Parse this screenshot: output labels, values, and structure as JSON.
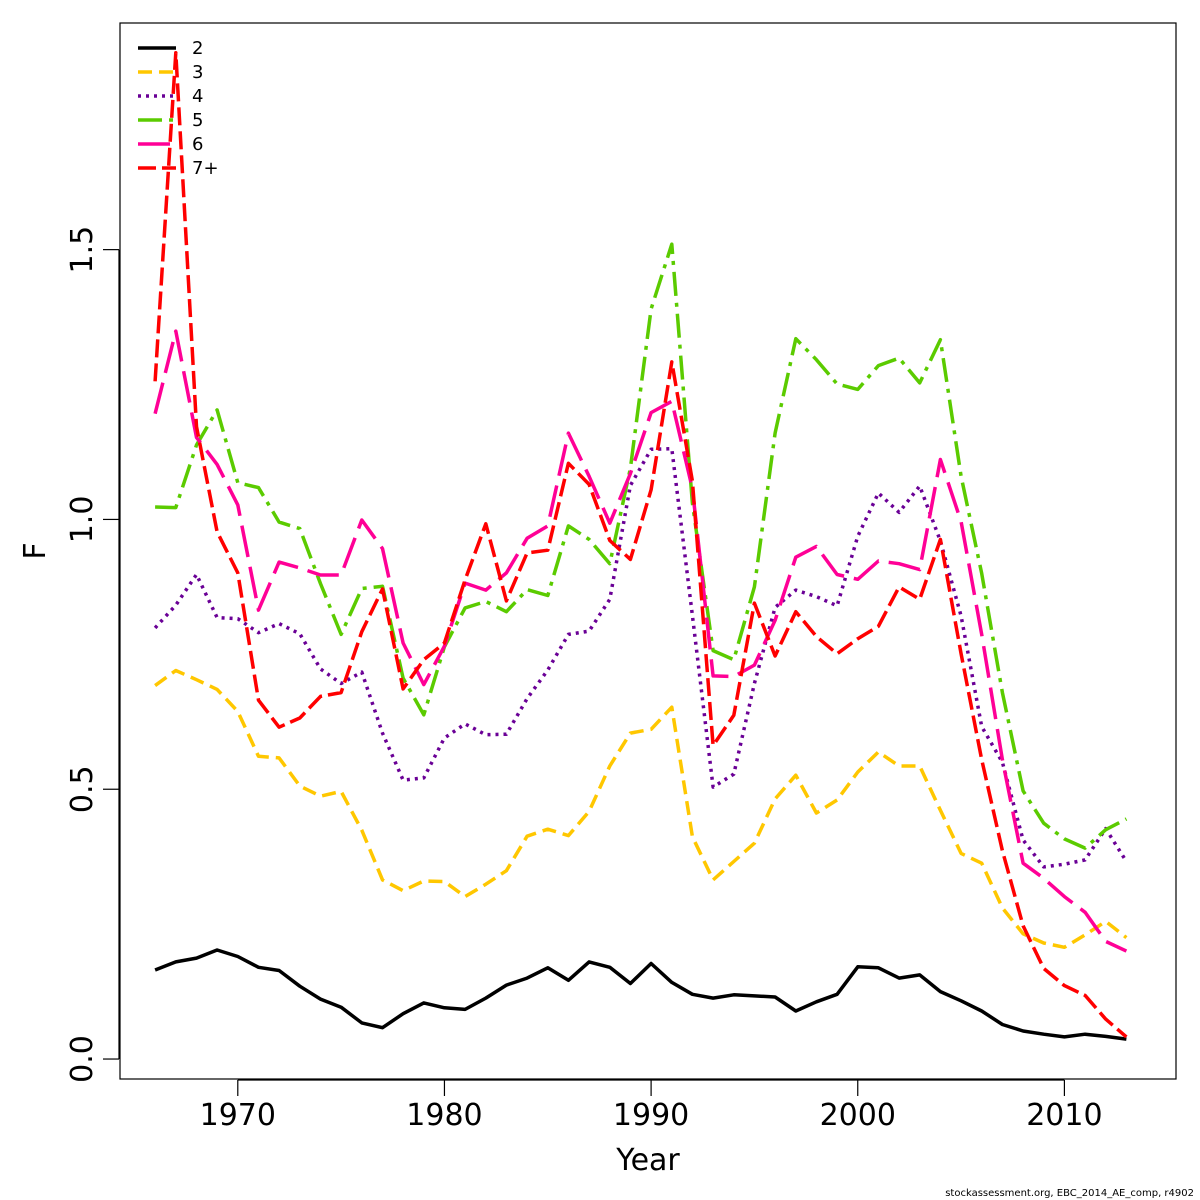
{
  "chart_data": {
    "type": "line",
    "title": "",
    "xlabel": "Year",
    "ylabel": "F",
    "xlim": [
      1964.3,
      2015.4
    ],
    "ylim": [
      -0.037,
      1.92
    ],
    "x_ticks": [
      1970,
      1980,
      1990,
      2000,
      2010
    ],
    "x_tick_labels": [
      "1970",
      "1980",
      "1990",
      "2000",
      "2010"
    ],
    "y_ticks": [
      0.0,
      0.5,
      1.0,
      1.5
    ],
    "y_tick_labels": [
      "0.0",
      "0.5",
      "1.0",
      "1.5"
    ],
    "grid": false,
    "legend_position": "top-left",
    "x": [
      1966,
      1967,
      1968,
      1969,
      1970,
      1971,
      1972,
      1973,
      1974,
      1975,
      1976,
      1977,
      1978,
      1979,
      1980,
      1981,
      1982,
      1983,
      1984,
      1985,
      1986,
      1987,
      1988,
      1989,
      1990,
      1991,
      1992,
      1993,
      1994,
      1995,
      1996,
      1997,
      1998,
      1999,
      2000,
      2001,
      2002,
      2003,
      2004,
      2005,
      2006,
      2007,
      2008,
      2009,
      2010,
      2011,
      2012,
      2013
    ],
    "series": [
      {
        "name": "2",
        "color": "#000000",
        "dash": "",
        "width": 3.5,
        "values": [
          0.165,
          0.18,
          0.187,
          0.202,
          0.19,
          0.17,
          0.164,
          0.135,
          0.111,
          0.096,
          0.067,
          0.058,
          0.084,
          0.104,
          0.095,
          0.092,
          0.113,
          0.137,
          0.15,
          0.169,
          0.146,
          0.18,
          0.17,
          0.14,
          0.177,
          0.142,
          0.12,
          0.113,
          0.119,
          0.117,
          0.115,
          0.089,
          0.106,
          0.12,
          0.171,
          0.169,
          0.15,
          0.156,
          0.125,
          0.108,
          0.089,
          0.064,
          0.052,
          0.046,
          0.041,
          0.046,
          0.042,
          0.037
        ]
      },
      {
        "name": "3",
        "color": "#ffc700",
        "dash": "14,7",
        "width": 3.5,
        "values": [
          0.692,
          0.72,
          0.703,
          0.685,
          0.644,
          0.561,
          0.558,
          0.506,
          0.487,
          0.496,
          0.424,
          0.332,
          0.312,
          0.33,
          0.329,
          0.301,
          0.324,
          0.349,
          0.413,
          0.426,
          0.414,
          0.459,
          0.543,
          0.604,
          0.611,
          0.652,
          0.412,
          0.332,
          0.366,
          0.4,
          0.482,
          0.526,
          0.456,
          0.48,
          0.532,
          0.569,
          0.543,
          0.543,
          0.461,
          0.381,
          0.363,
          0.28,
          0.232,
          0.215,
          0.207,
          0.23,
          0.255,
          0.225
        ]
      },
      {
        "name": "4",
        "color": "#6a0096",
        "dash": "3,5",
        "width": 3.5,
        "values": [
          0.799,
          0.841,
          0.898,
          0.818,
          0.816,
          0.79,
          0.807,
          0.788,
          0.723,
          0.696,
          0.717,
          0.604,
          0.517,
          0.521,
          0.595,
          0.621,
          0.601,
          0.602,
          0.668,
          0.721,
          0.787,
          0.793,
          0.852,
          1.063,
          1.13,
          1.131,
          0.822,
          0.504,
          0.528,
          0.696,
          0.837,
          0.869,
          0.857,
          0.84,
          0.969,
          1.049,
          1.013,
          1.062,
          0.96,
          0.821,
          0.616,
          0.55,
          0.406,
          0.356,
          0.361,
          0.369,
          0.427,
          0.366
        ]
      },
      {
        "name": "5",
        "color": "#5bcb00",
        "dash": "24,7,4,7",
        "width": 3.5,
        "values": [
          1.023,
          1.022,
          1.138,
          1.203,
          1.068,
          1.059,
          0.995,
          0.983,
          0.881,
          0.787,
          0.872,
          0.876,
          0.706,
          0.638,
          0.764,
          0.836,
          0.848,
          0.829,
          0.87,
          0.859,
          0.988,
          0.963,
          0.918,
          1.095,
          1.39,
          1.51,
          1.03,
          0.757,
          0.74,
          0.875,
          1.16,
          1.335,
          1.296,
          1.251,
          1.241,
          1.285,
          1.299,
          1.253,
          1.333,
          1.08,
          0.9,
          0.679,
          0.497,
          0.437,
          0.408,
          0.391,
          0.425,
          0.445
        ]
      },
      {
        "name": "6",
        "color": "#ff0096",
        "dash": "32,10",
        "width": 3.5,
        "values": [
          1.196,
          1.349,
          1.152,
          1.102,
          1.027,
          0.832,
          0.921,
          0.91,
          0.897,
          0.897,
          0.999,
          0.946,
          0.771,
          0.694,
          0.765,
          0.882,
          0.869,
          0.901,
          0.965,
          0.988,
          1.16,
          1.08,
          0.993,
          1.085,
          1.198,
          1.219,
          1.057,
          0.71,
          0.709,
          0.73,
          0.813,
          0.93,
          0.95,
          0.898,
          0.889,
          0.923,
          0.918,
          0.907,
          1.111,
          0.996,
          0.787,
          0.555,
          0.363,
          0.335,
          0.301,
          0.272,
          0.218,
          0.2
        ]
      },
      {
        "name": "7+",
        "color": "#ff0000",
        "dash": "18,6",
        "width": 3.5,
        "values": [
          1.256,
          1.865,
          1.172,
          0.977,
          0.901,
          0.665,
          0.615,
          0.632,
          0.672,
          0.679,
          0.792,
          0.871,
          0.686,
          0.74,
          0.771,
          0.888,
          0.992,
          0.849,
          0.938,
          0.943,
          1.104,
          1.065,
          0.961,
          0.926,
          1.055,
          1.292,
          1.071,
          0.581,
          0.637,
          0.845,
          0.747,
          0.829,
          0.783,
          0.751,
          0.779,
          0.802,
          0.875,
          0.852,
          0.963,
          0.751,
          0.555,
          0.386,
          0.247,
          0.168,
          0.136,
          0.118,
          0.074,
          0.041
        ]
      }
    ]
  },
  "footnote": "stockassessment.org, EBC_2014_AE_comp, r4902"
}
